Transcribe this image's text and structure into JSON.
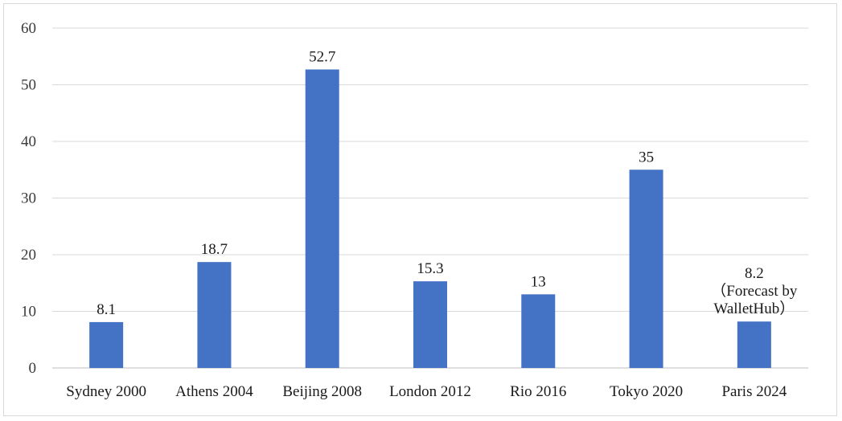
{
  "chart_data": {
    "type": "bar",
    "categories": [
      "Sydney 2000",
      "Athens 2004",
      "Beijing 2008",
      "London 2012",
      "Rio 2016",
      "Tokyo 2020",
      "Paris 2024"
    ],
    "values": [
      8.1,
      18.7,
      52.7,
      15.3,
      13,
      35,
      8.2
    ],
    "data_labels": [
      [
        "8.1"
      ],
      [
        "18.7"
      ],
      [
        "52.7"
      ],
      [
        "15.3"
      ],
      [
        "13"
      ],
      [
        "35"
      ],
      [
        "8.2",
        "（Forecast by",
        "WalletHub）"
      ]
    ],
    "yticks": [
      "0",
      "10",
      "20",
      "30",
      "40",
      "50",
      "60"
    ],
    "ylim": [
      0,
      60
    ],
    "grid": true,
    "legend": "none",
    "bar_color": "#4472c4",
    "title": "",
    "xlabel": "",
    "ylabel": ""
  }
}
